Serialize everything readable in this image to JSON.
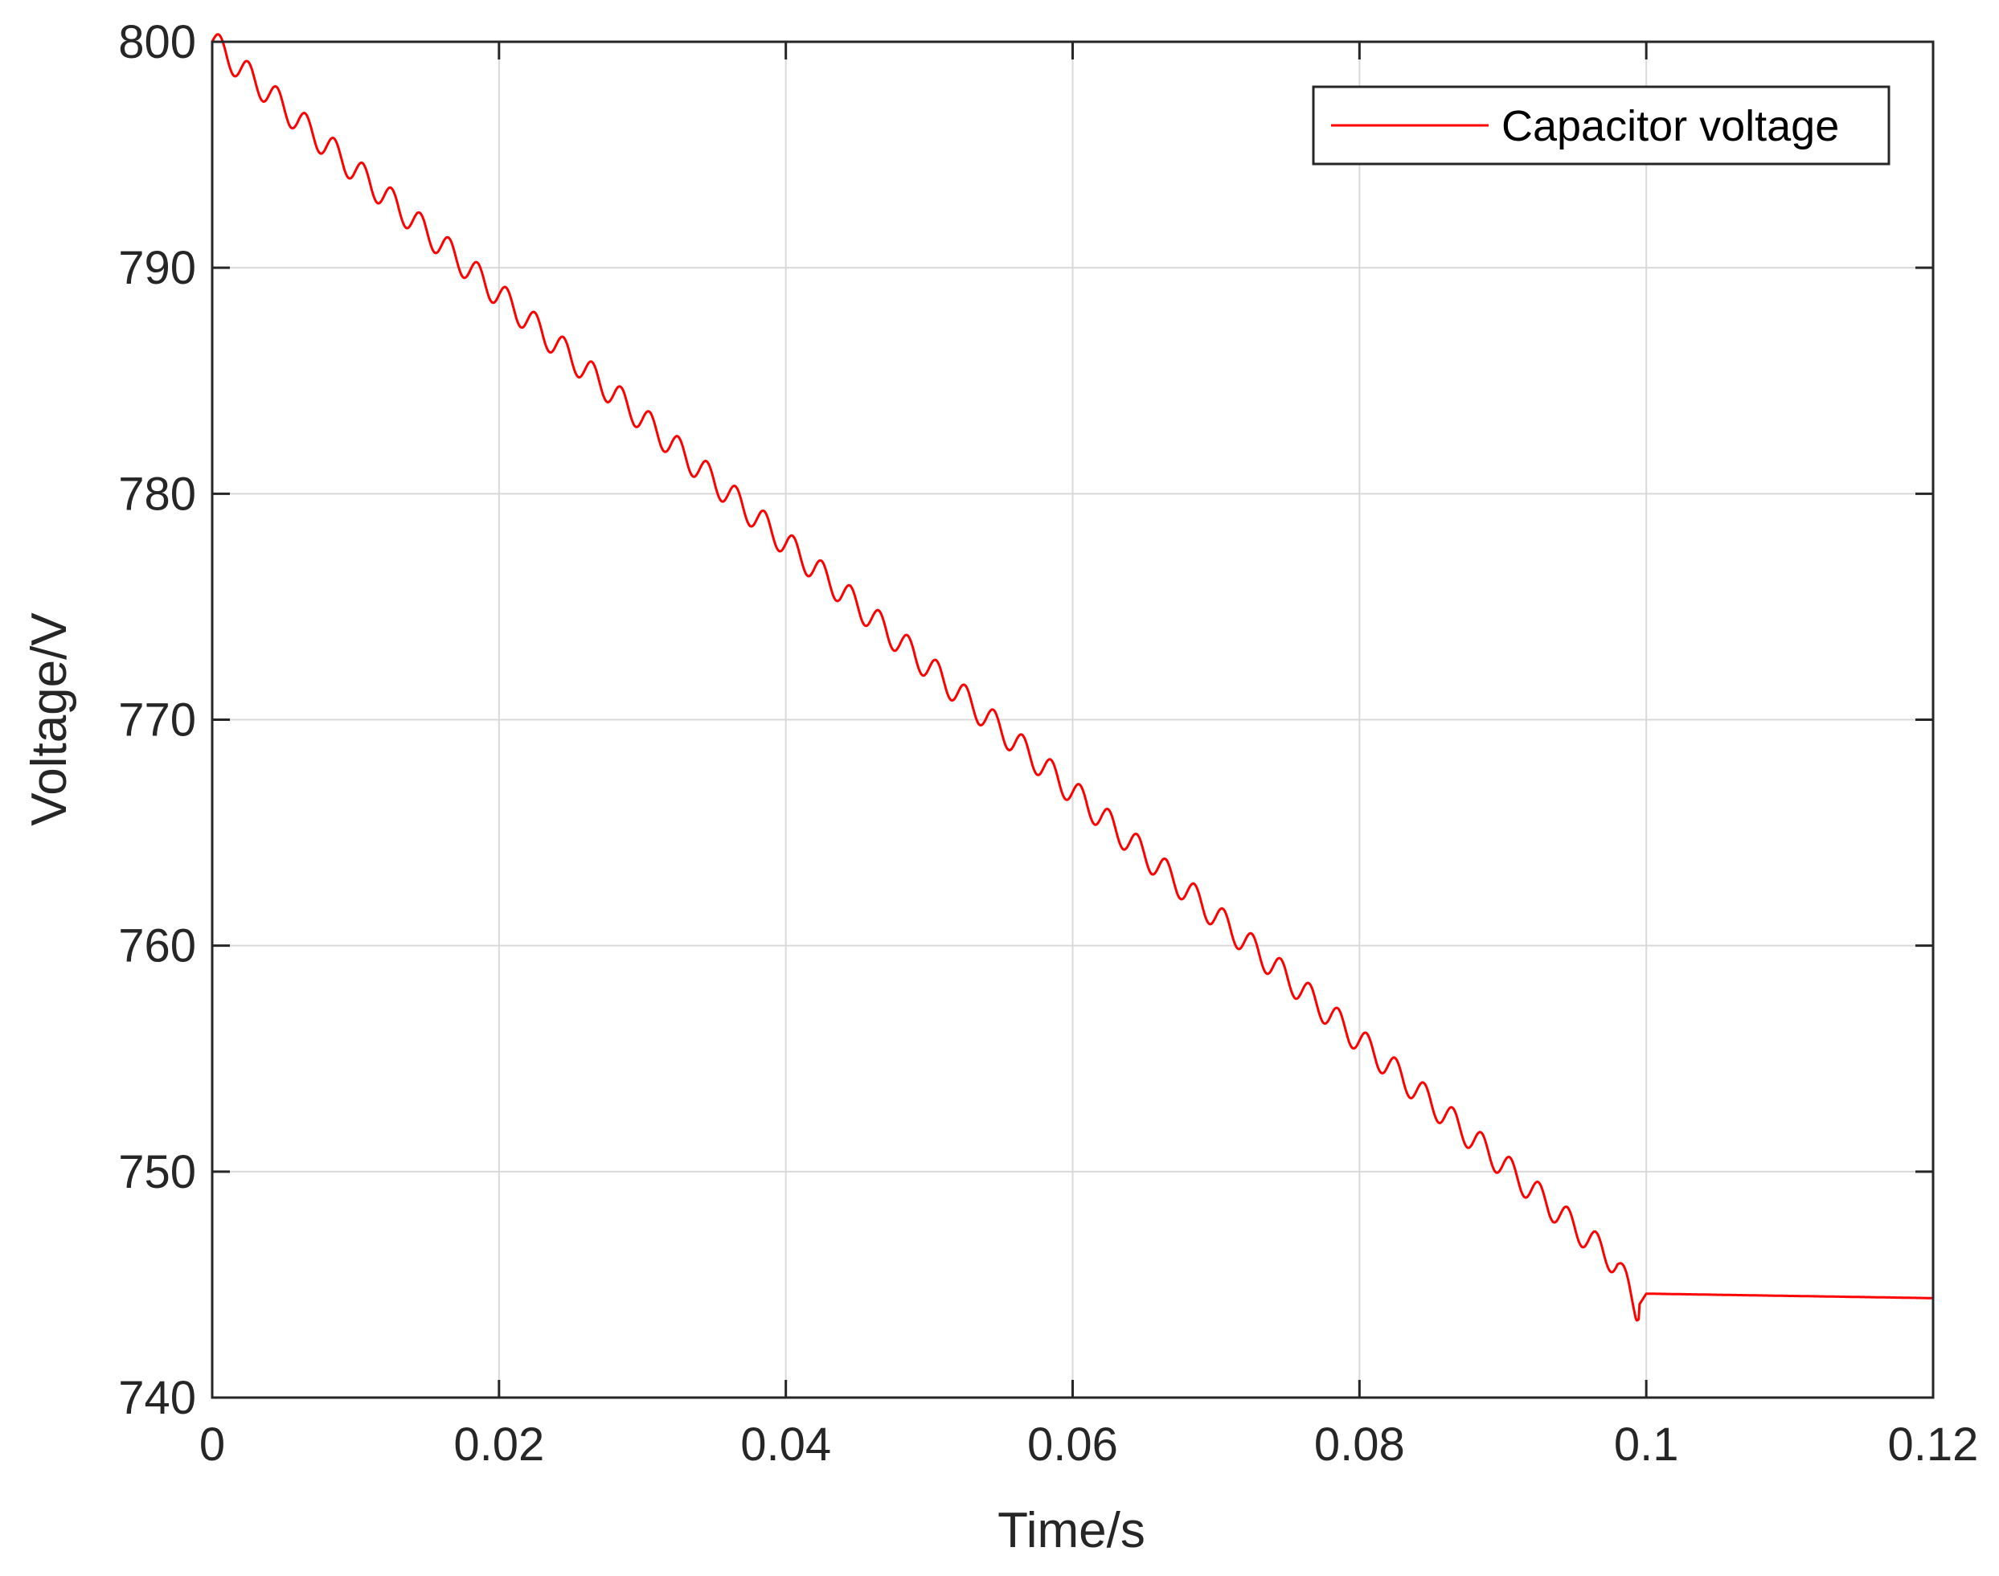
{
  "chart_data": {
    "type": "line",
    "xlabel": "Time/s",
    "ylabel": "Voltage/V",
    "xlim": [
      0,
      0.12
    ],
    "ylim": [
      740,
      800
    ],
    "xticks": [
      0,
      0.02,
      0.04,
      0.06,
      0.08,
      0.1,
      0.12
    ],
    "xtick_labels": [
      "0",
      "0.02",
      "0.04",
      "0.06",
      "0.08",
      "0.1",
      "0.12"
    ],
    "yticks": [
      740,
      750,
      760,
      770,
      780,
      790,
      800
    ],
    "ytick_labels": [
      "740",
      "750",
      "760",
      "770",
      "780",
      "790",
      "800"
    ],
    "grid": true,
    "legend_position": "top-right",
    "series": [
      {
        "name": "Capacitor voltage",
        "color": "#ff0000",
        "x": [
          0,
          0.002,
          0.004,
          0.006,
          0.008,
          0.01,
          0.012,
          0.014,
          0.016,
          0.018,
          0.02,
          0.022,
          0.024,
          0.026,
          0.028,
          0.03,
          0.032,
          0.034,
          0.036,
          0.038,
          0.04,
          0.042,
          0.044,
          0.046,
          0.048,
          0.05,
          0.052,
          0.054,
          0.056,
          0.058,
          0.06,
          0.062,
          0.064,
          0.066,
          0.068,
          0.07,
          0.072,
          0.074,
          0.076,
          0.078,
          0.08,
          0.082,
          0.084,
          0.086,
          0.088,
          0.09,
          0.092,
          0.094,
          0.096,
          0.098,
          0.0993,
          0.1,
          0.11,
          0.12
        ],
        "y": [
          800,
          798.8,
          797.7,
          796.5,
          795.4,
          794.3,
          793.2,
          792.1,
          791.0,
          789.9,
          788.8,
          787.7,
          786.6,
          785.5,
          784.4,
          783.3,
          782.2,
          781.1,
          780.0,
          778.9,
          777.8,
          776.7,
          775.6,
          774.5,
          773.4,
          772.3,
          771.2,
          770.1,
          769.0,
          767.9,
          766.8,
          765.7,
          764.6,
          763.5,
          762.4,
          761.3,
          760.2,
          759.1,
          758.0,
          756.9,
          755.8,
          754.7,
          753.6,
          752.5,
          751.4,
          750.3,
          749.2,
          748.1,
          747.0,
          745.9,
          743.9,
          744.6,
          744.5,
          744.4
        ],
        "ripple_amplitude": 0.6,
        "ripple_period": 0.002,
        "ripple_end": 0.0995
      }
    ]
  }
}
